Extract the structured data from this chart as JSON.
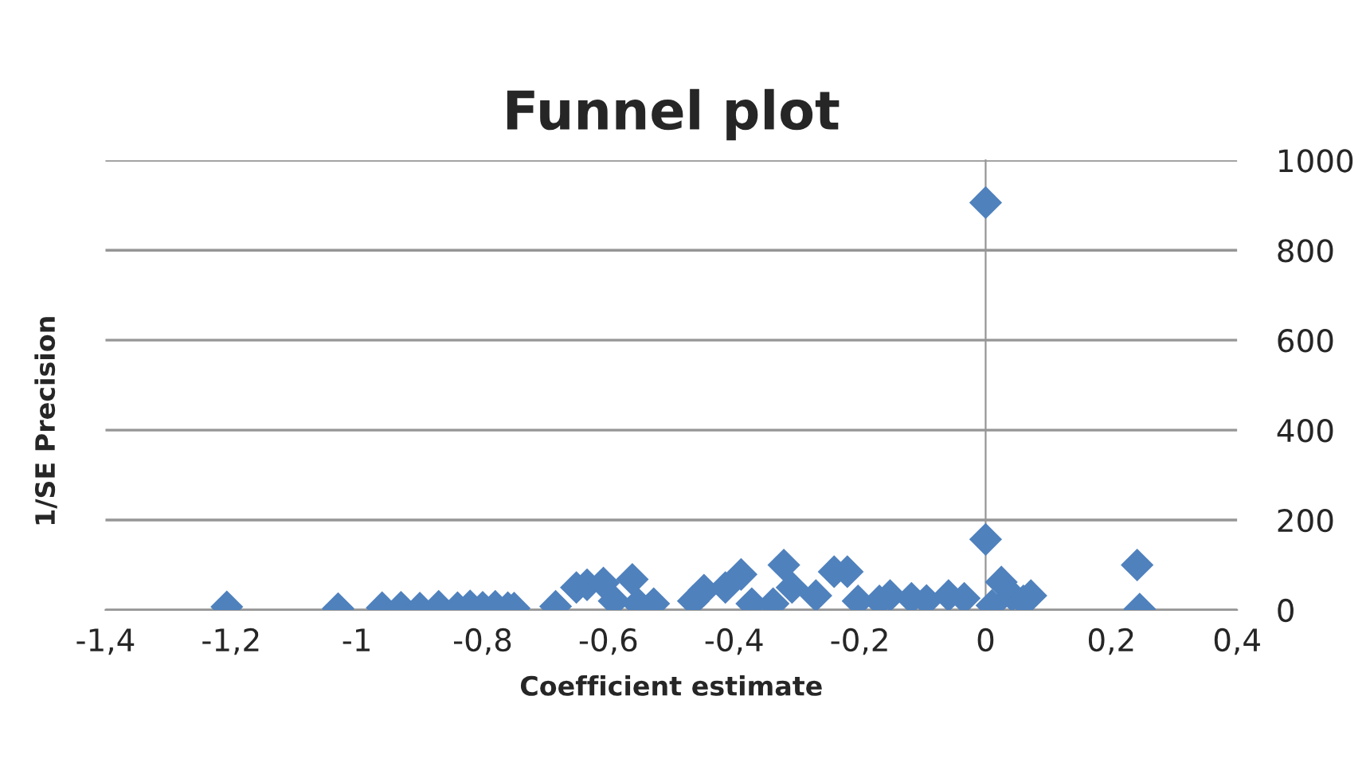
{
  "chart_data": {
    "type": "scatter",
    "title": "Funnel plot",
    "xlabel": "Coefficient estimate",
    "ylabel": "1/SE Precision",
    "series": [
      {
        "color": "#4f81bd",
        "x": [
          -1.207,
          -1.03,
          -0.96,
          -0.93,
          -0.9,
          -0.87,
          -0.84,
          -0.82,
          -0.8,
          -0.78,
          -0.76,
          -0.75,
          -0.684,
          -0.651,
          -0.634,
          -0.608,
          -0.591,
          -0.562,
          -0.553,
          -0.528,
          -0.465,
          -0.448,
          -0.414,
          -0.389,
          -0.372,
          -0.338,
          -0.321,
          -0.308,
          -0.279,
          -0.27,
          -0.241,
          -0.22,
          -0.203,
          -0.169,
          -0.152,
          -0.118,
          -0.101,
          -0.094,
          -0.059,
          -0.043,
          -0.034,
          0,
          0,
          0.01,
          0.02,
          0.025,
          0.042,
          0.06,
          0.072,
          0.241,
          0.245
        ],
        "values": [
          7,
          3,
          5,
          6,
          4,
          8,
          5,
          9,
          6,
          8,
          5,
          4,
          8,
          50,
          56,
          60,
          20,
          68,
          14,
          14,
          20,
          44,
          50,
          79,
          14,
          14,
          100,
          50,
          null,
          32,
          85,
          85,
          20,
          20,
          32,
          26,
          null,
          21,
          32,
          null,
          26,
          906,
          157,
          10,
          null,
          62,
          32,
          20,
          32,
          100,
          2
        ]
      }
    ],
    "marker": "diamond",
    "grid": "y",
    "legend": false,
    "xlim": [
      -1.4,
      0.4
    ],
    "xticks": [
      {
        "value": -1.4,
        "label": "-1,4"
      },
      {
        "value": -1.2,
        "label": "-1,2"
      },
      -1,
      {
        "value": -0.8,
        "label": "-0,8"
      },
      {
        "value": -0.6,
        "label": "-0,6"
      },
      {
        "value": -0.4,
        "label": "-0,4"
      },
      {
        "value": -0.2,
        "label": "-0,2"
      },
      0,
      {
        "value": 0.2,
        "label": "0,2"
      },
      {
        "value": 0.4,
        "label": "0,4"
      }
    ],
    "ylim": [
      0,
      1000
    ],
    "yticks": [
      0,
      200,
      400,
      600,
      800,
      1000
    ]
  }
}
